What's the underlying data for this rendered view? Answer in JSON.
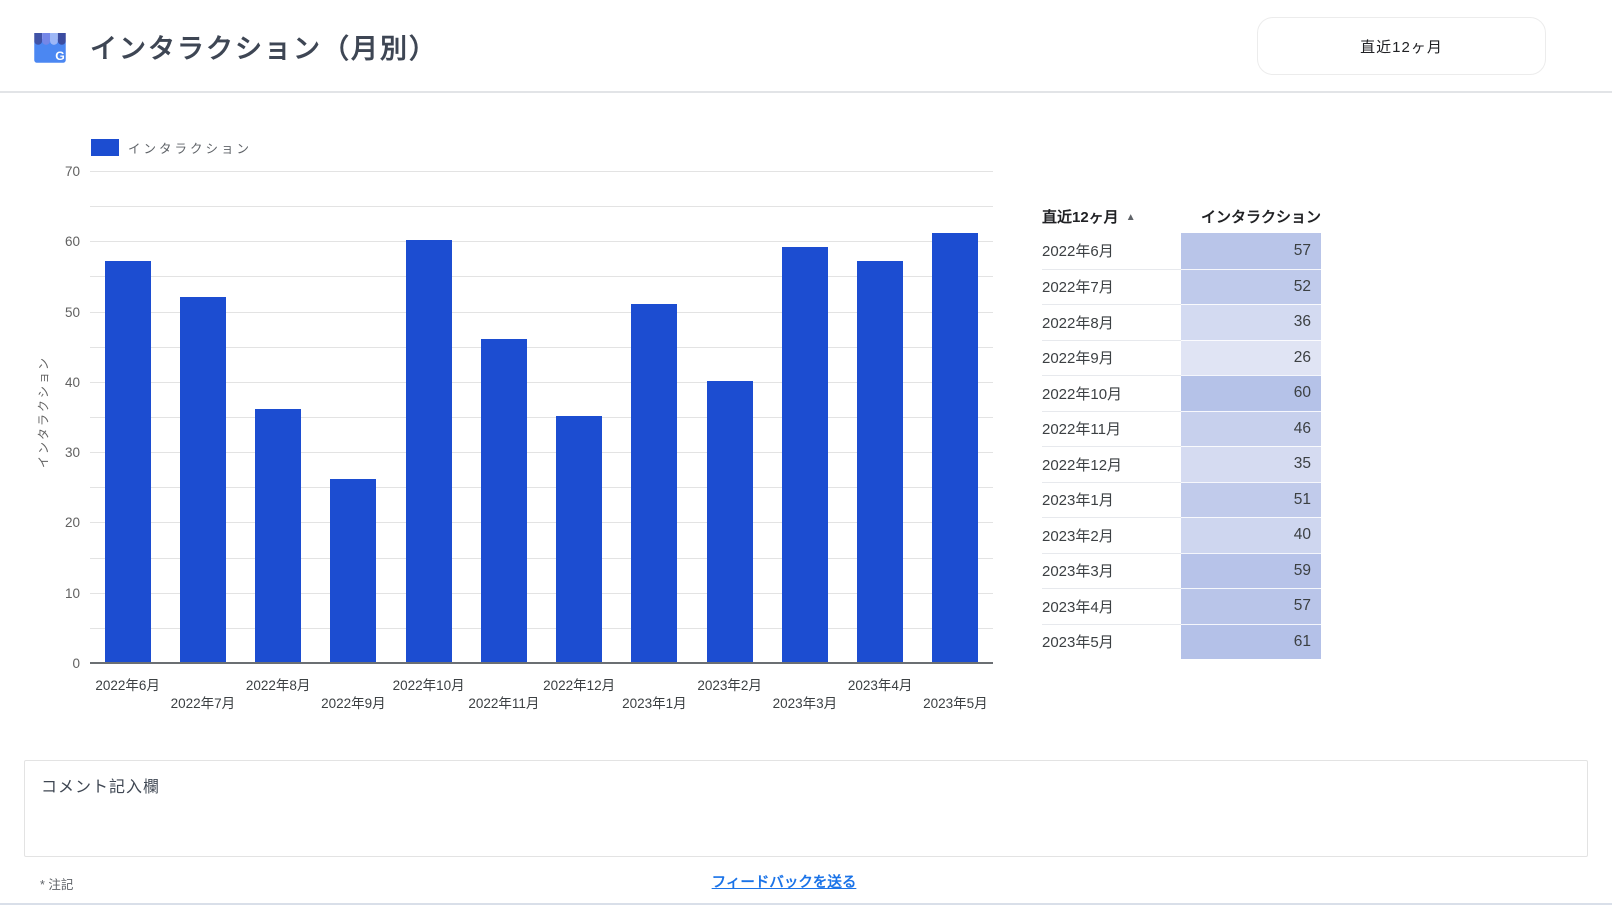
{
  "header": {
    "title": "インタラクション（月別）",
    "icon": "google-business-profile",
    "range_button": "直近12ヶ月"
  },
  "chart_data": {
    "type": "bar",
    "title": "インタラクション（月別）",
    "legend": [
      {
        "label": "インタラクション",
        "color": "#1c4dd1"
      }
    ],
    "legend_position": "top-left",
    "xlabel": "",
    "ylabel": "インタラクション",
    "categories": [
      "2022年6月",
      "2022年7月",
      "2022年8月",
      "2022年9月",
      "2022年10月",
      "2022年11月",
      "2022年12月",
      "2023年1月",
      "2023年2月",
      "2023年3月",
      "2023年4月",
      "2023年5月"
    ],
    "series": [
      {
        "name": "インタラクション",
        "values": [
          57,
          52,
          36,
          26,
          60,
          46,
          35,
          51,
          40,
          59,
          57,
          61
        ]
      }
    ],
    "ylim": [
      0,
      70
    ],
    "ytick_labels": [
      0,
      10,
      20,
      30,
      40,
      50,
      60,
      70
    ],
    "grid": true,
    "grid_step": 5,
    "bar_color": "#1c4dd1"
  },
  "table": {
    "columns": [
      {
        "label": "直近12ヶ月",
        "sort": "asc"
      },
      {
        "label": "インタラクション"
      }
    ],
    "sort_icon": "▲",
    "rows": [
      {
        "month": "2022年6月",
        "value": 57
      },
      {
        "month": "2022年7月",
        "value": 52
      },
      {
        "month": "2022年8月",
        "value": 36
      },
      {
        "month": "2022年9月",
        "value": 26
      },
      {
        "month": "2022年10月",
        "value": 60
      },
      {
        "month": "2022年11月",
        "value": 46
      },
      {
        "month": "2022年12月",
        "value": 35
      },
      {
        "month": "2023年1月",
        "value": 51
      },
      {
        "month": "2023年2月",
        "value": 40
      },
      {
        "month": "2023年3月",
        "value": 59
      },
      {
        "month": "2023年4月",
        "value": 57
      },
      {
        "month": "2023年5月",
        "value": 61
      }
    ],
    "heatmap": {
      "min_color": "#e0e4f4",
      "max_color": "#b4c1e8"
    }
  },
  "comment": {
    "placeholder": "コメント記入欄"
  },
  "footer": {
    "note": "* 注記",
    "feedback_link": "フィードバックを送る"
  },
  "colors": {
    "accent_blue": "#1c4dd1",
    "link_blue": "#1a73e8"
  }
}
